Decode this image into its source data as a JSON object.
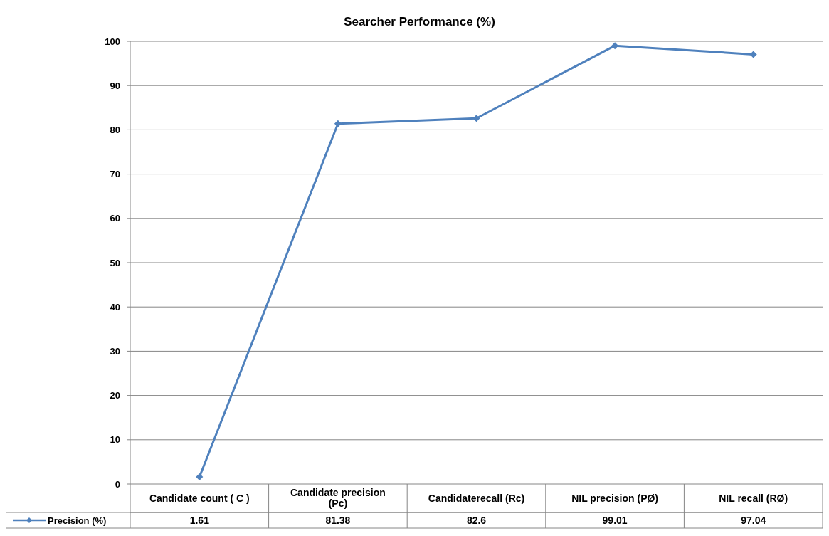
{
  "chart_data": {
    "type": "line",
    "title": "Searcher Performance (%)",
    "categories": [
      "Candidate count ( C )",
      "Candidate precision (Pc)",
      "Candidaterecall (Rc)",
      "NIL precision (PØ)",
      "NIL recall (RØ)"
    ],
    "series": [
      {
        "name": "Precision (%)",
        "color": "#4f81bd",
        "values": [
          1.61,
          81.38,
          82.6,
          99.01,
          97.04
        ]
      }
    ],
    "ylim": [
      0,
      100
    ],
    "yticks": [
      0,
      10,
      20,
      30,
      40,
      50,
      60,
      70,
      80,
      90,
      100
    ],
    "grid": "y",
    "marker": "diamond",
    "line_style": "solid",
    "legend": "bottom left",
    "data_labels": true
  }
}
